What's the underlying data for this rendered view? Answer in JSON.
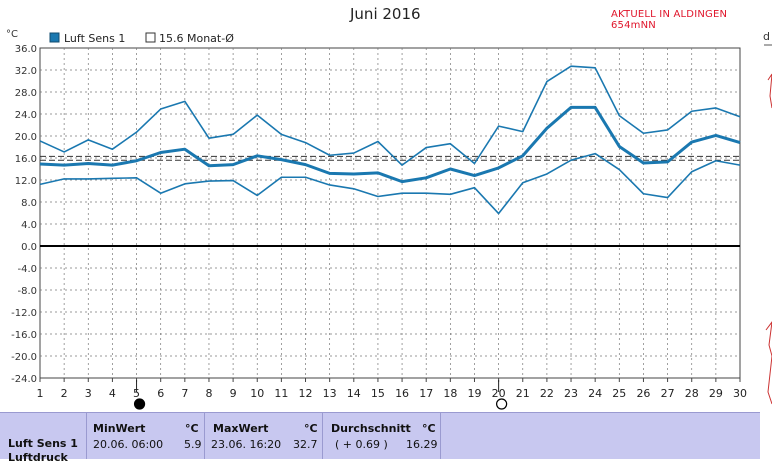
{
  "title": "Juni 2016",
  "aktuell": "AKTUELL IN ALDINGEN 654mNN",
  "side_label": "d",
  "chart_data": {
    "type": "line",
    "yunit": "°C",
    "ylim": [
      -24,
      36
    ],
    "yticks": [
      "36.0",
      "32.0",
      "28.0",
      "24.0",
      "20.0",
      "16.0",
      "12.0",
      "8.0",
      "4.0",
      "0.0",
      "-4.0",
      "-8.0",
      "-12.0",
      "-16.0",
      "-20.0",
      "-24.0"
    ],
    "x": [
      1,
      2,
      3,
      4,
      5,
      6,
      7,
      8,
      9,
      10,
      11,
      12,
      13,
      14,
      15,
      16,
      17,
      18,
      19,
      20,
      21,
      22,
      23,
      24,
      25,
      26,
      27,
      28,
      29,
      30
    ],
    "legend": [
      {
        "label": "Luft Sens 1",
        "color": "#1a78b0",
        "style": "filled-box"
      },
      {
        "label": "15.6 Monat-Ø",
        "color": "#333333",
        "style": "empty-box"
      }
    ],
    "series": [
      {
        "name": "Luft Sens 1",
        "role": "max",
        "values": [
          19.1,
          17.1,
          19.3,
          17.6,
          20.7,
          24.9,
          26.3,
          19.6,
          20.3,
          23.8,
          20.3,
          18.8,
          16.5,
          16.9,
          19.0,
          14.7,
          17.9,
          18.6,
          15.0,
          21.8,
          20.8,
          29.9,
          32.7,
          32.4,
          23.7,
          20.5,
          21.1,
          24.5,
          25.1,
          23.5
        ]
      },
      {
        "name": "Luft Sens 1",
        "role": "avg",
        "values": [
          14.9,
          14.7,
          15.0,
          14.7,
          15.5,
          17.0,
          17.6,
          14.6,
          14.8,
          16.4,
          15.7,
          14.8,
          13.2,
          13.1,
          13.3,
          11.7,
          12.4,
          14.0,
          12.8,
          14.2,
          16.4,
          21.4,
          25.2,
          25.2,
          18.1,
          15.1,
          15.3,
          18.9,
          20.1,
          18.8
        ]
      },
      {
        "name": "Luft Sens 1",
        "role": "min",
        "values": [
          11.2,
          12.2,
          12.2,
          12.3,
          12.4,
          9.6,
          11.3,
          11.8,
          11.9,
          9.2,
          12.5,
          12.5,
          11.1,
          10.4,
          9.0,
          9.6,
          9.6,
          9.4,
          10.6,
          5.9,
          11.5,
          13.1,
          15.6,
          16.8,
          13.9,
          9.5,
          8.8,
          13.5,
          15.5,
          14.7
        ]
      }
    ],
    "reference_lines": [
      {
        "value": 16.29,
        "style": "dashed"
      },
      {
        "value": 15.6,
        "style": "dashed"
      }
    ],
    "moon_markers": [
      {
        "x": 5,
        "phase": "new"
      },
      {
        "x": 20,
        "phase": "full"
      }
    ]
  },
  "stats": {
    "sensor": "Luft Sens 1",
    "sensor2": "Luftdruck",
    "min": {
      "title": "MinWert",
      "unit": "°C",
      "time": "20.06.  06:00",
      "value": "5.9"
    },
    "max": {
      "title": "MaxWert",
      "unit": "°C",
      "time": "23.06.  16:20",
      "value": "32.7"
    },
    "avg": {
      "title": "Durchschnitt",
      "unit": "°C",
      "delta": "( + 0.69 )",
      "value": "16.29"
    }
  },
  "colors": {
    "line": "#1a78b0",
    "grid": "#777777",
    "stats_bg": "#c8c8f0",
    "aktuell": "#e0152b"
  }
}
